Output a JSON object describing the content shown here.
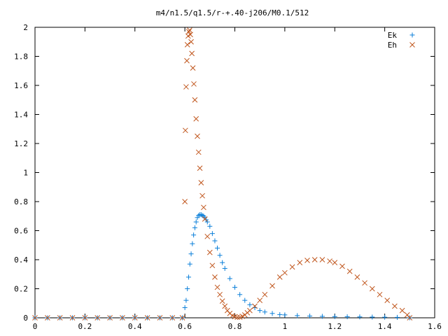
{
  "chart_data": {
    "type": "scatter",
    "title": "m4/n1.5/q1.5/r-+.40-j206/M0.1/512",
    "xlabel": "",
    "ylabel": "",
    "xlim": [
      0,
      1.6
    ],
    "ylim": [
      0,
      2
    ],
    "x_ticks": [
      "0",
      "0.2",
      "0.4",
      "0.6",
      "0.8",
      "1",
      "1.2",
      "1.4",
      "1.6"
    ],
    "y_ticks": [
      "0",
      "0.2",
      "0.4",
      "0.6",
      "0.8",
      "1",
      "1.2",
      "1.4",
      "1.6",
      "1.8",
      "2"
    ],
    "legend_position": "top-right",
    "grid": false,
    "series": [
      {
        "name": "Ek",
        "marker": "plus",
        "color": "#0a7fd9",
        "x": [
          0.0,
          0.05,
          0.1,
          0.15,
          0.2,
          0.25,
          0.3,
          0.35,
          0.4,
          0.45,
          0.5,
          0.55,
          0.59,
          0.6,
          0.605,
          0.61,
          0.615,
          0.62,
          0.625,
          0.63,
          0.635,
          0.64,
          0.645,
          0.65,
          0.655,
          0.66,
          0.665,
          0.67,
          0.675,
          0.68,
          0.685,
          0.69,
          0.7,
          0.71,
          0.72,
          0.73,
          0.74,
          0.75,
          0.76,
          0.78,
          0.8,
          0.82,
          0.84,
          0.86,
          0.88,
          0.9,
          0.92,
          0.95,
          0.98,
          1.0,
          1.05,
          1.1,
          1.15,
          1.2,
          1.25,
          1.3,
          1.35,
          1.4,
          1.45,
          1.5
        ],
        "y": [
          0,
          0,
          0,
          0,
          0,
          0,
          0,
          0,
          0,
          0,
          0,
          0,
          0,
          0.07,
          0.12,
          0.2,
          0.28,
          0.37,
          0.44,
          0.51,
          0.57,
          0.62,
          0.66,
          0.69,
          0.705,
          0.71,
          0.71,
          0.705,
          0.7,
          0.69,
          0.675,
          0.66,
          0.63,
          0.58,
          0.53,
          0.48,
          0.43,
          0.38,
          0.34,
          0.27,
          0.21,
          0.16,
          0.12,
          0.09,
          0.07,
          0.05,
          0.04,
          0.03,
          0.022,
          0.02,
          0.015,
          0.012,
          0.01,
          0.008,
          0.007,
          0.006,
          0.005,
          0.004,
          0.003,
          0.0
        ]
      },
      {
        "name": "Eh",
        "marker": "x",
        "color": "#c0561d",
        "x": [
          0.0,
          0.05,
          0.1,
          0.15,
          0.2,
          0.25,
          0.3,
          0.35,
          0.4,
          0.45,
          0.5,
          0.55,
          0.59,
          0.6,
          0.602,
          0.605,
          0.608,
          0.61,
          0.613,
          0.616,
          0.619,
          0.622,
          0.625,
          0.628,
          0.632,
          0.636,
          0.64,
          0.645,
          0.65,
          0.655,
          0.66,
          0.665,
          0.67,
          0.675,
          0.68,
          0.69,
          0.7,
          0.71,
          0.72,
          0.73,
          0.74,
          0.75,
          0.76,
          0.77,
          0.78,
          0.79,
          0.8,
          0.81,
          0.82,
          0.83,
          0.84,
          0.85,
          0.86,
          0.88,
          0.9,
          0.92,
          0.95,
          0.98,
          1.0,
          1.03,
          1.06,
          1.09,
          1.12,
          1.15,
          1.18,
          1.2,
          1.23,
          1.26,
          1.29,
          1.32,
          1.35,
          1.38,
          1.41,
          1.44,
          1.47,
          1.49,
          1.5
        ],
        "y": [
          0,
          0,
          0,
          0,
          0,
          0,
          0,
          0,
          0,
          0,
          0,
          0,
          0,
          0.8,
          1.29,
          1.59,
          1.77,
          1.88,
          1.94,
          1.97,
          1.98,
          1.95,
          1.9,
          1.82,
          1.72,
          1.61,
          1.5,
          1.37,
          1.25,
          1.14,
          1.03,
          0.93,
          0.84,
          0.76,
          0.68,
          0.56,
          0.45,
          0.36,
          0.28,
          0.21,
          0.16,
          0.115,
          0.08,
          0.05,
          0.03,
          0.015,
          0.008,
          0.004,
          0.004,
          0.01,
          0.02,
          0.035,
          0.05,
          0.08,
          0.12,
          0.16,
          0.22,
          0.28,
          0.31,
          0.35,
          0.38,
          0.395,
          0.4,
          0.4,
          0.39,
          0.38,
          0.355,
          0.32,
          0.28,
          0.24,
          0.2,
          0.16,
          0.12,
          0.08,
          0.05,
          0.02,
          0.0
        ]
      }
    ]
  }
}
